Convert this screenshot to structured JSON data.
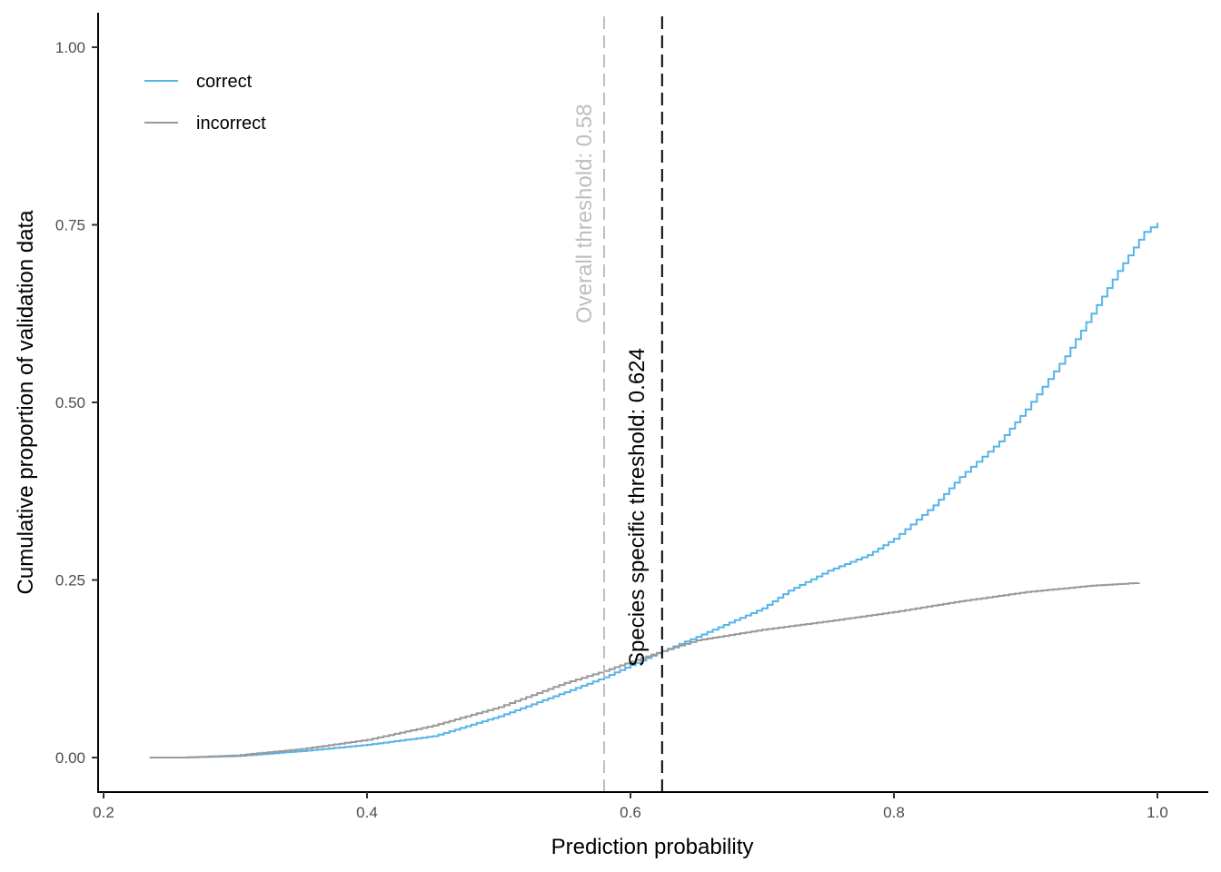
{
  "chart_data": {
    "type": "line",
    "title": "",
    "xlabel": "Prediction probability",
    "ylabel": "Cumulative proportion of validation data",
    "xlim": [
      0.2,
      1.02
    ],
    "ylim": [
      -0.05,
      1.05
    ],
    "x_ticks": [
      0.2,
      0.4,
      0.6,
      0.8,
      1.0
    ],
    "x_tick_labels": [
      "0.2",
      "0.4",
      "0.6",
      "0.8",
      "1.0"
    ],
    "y_ticks": [
      0.0,
      0.25,
      0.5,
      0.75,
      1.0
    ],
    "y_tick_labels": [
      "0.00",
      "0.25",
      "0.50",
      "0.75",
      "1.00"
    ],
    "grid": false,
    "legend_position": "top-left inside",
    "series": [
      {
        "name": "correct",
        "color": "#56B4E9",
        "step": true,
        "x": [
          0.235,
          0.26,
          0.3,
          0.35,
          0.4,
          0.45,
          0.5,
          0.55,
          0.58,
          0.6,
          0.624,
          0.65,
          0.7,
          0.72,
          0.75,
          0.78,
          0.8,
          0.83,
          0.85,
          0.88,
          0.9,
          0.93,
          0.95,
          0.97,
          0.99,
          1.0
        ],
        "y": [
          0.0,
          0.0,
          0.002,
          0.009,
          0.018,
          0.03,
          0.058,
          0.092,
          0.113,
          0.13,
          0.15,
          0.17,
          0.21,
          0.235,
          0.263,
          0.285,
          0.308,
          0.355,
          0.395,
          0.445,
          0.49,
          0.565,
          0.625,
          0.685,
          0.74,
          0.753
        ]
      },
      {
        "name": "incorrect",
        "color": "#999999",
        "step": true,
        "x": [
          0.235,
          0.26,
          0.3,
          0.35,
          0.4,
          0.45,
          0.5,
          0.55,
          0.58,
          0.6,
          0.624,
          0.65,
          0.7,
          0.75,
          0.8,
          0.85,
          0.9,
          0.95,
          0.986
        ],
        "y": [
          0.0,
          0.0,
          0.003,
          0.012,
          0.025,
          0.045,
          0.071,
          0.105,
          0.122,
          0.135,
          0.15,
          0.165,
          0.18,
          0.192,
          0.205,
          0.22,
          0.233,
          0.242,
          0.246
        ]
      }
    ],
    "vlines": [
      {
        "x": 0.58,
        "label": "Overall threshold: 0.58",
        "color": "#BEBEBE",
        "style": "dashed"
      },
      {
        "x": 0.624,
        "label": "Species specific threshold: 0.624",
        "color": "#000000",
        "style": "dashed"
      }
    ]
  }
}
